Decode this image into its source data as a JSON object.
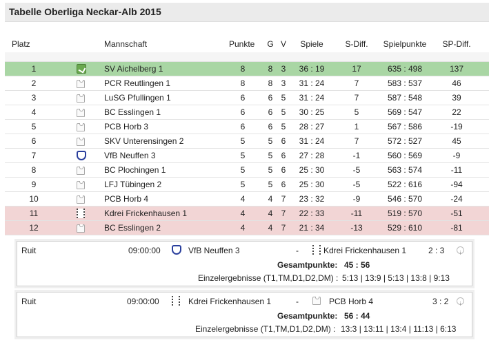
{
  "page": {
    "title": "Tabelle Oberliga Neckar-Alb 2015"
  },
  "table": {
    "headers": {
      "platz": "Platz",
      "mannschaft": "Mannschaft",
      "punkte": "Punkte",
      "g": "G",
      "v": "V",
      "spiele": "Spiele",
      "sdiff": "S-Diff.",
      "spielpunkte": "Spielpunkte",
      "spdiff": "SP-Diff."
    },
    "rows": [
      {
        "rank": "1",
        "logo": "club-shield-icon",
        "team": "SV Aichelberg 1",
        "punkte": "8",
        "g": "8",
        "v": "3",
        "spiele": "36 : 19",
        "sdiff": "17",
        "spielpunkte": "635 : 498",
        "spdiff": "137",
        "status": "promo"
      },
      {
        "rank": "2",
        "logo": "shirt-icon",
        "team": "PCR Reutlingen 1",
        "punkte": "8",
        "g": "8",
        "v": "3",
        "spiele": "31 : 24",
        "sdiff": "7",
        "spielpunkte": "583 : 537",
        "spdiff": "46",
        "status": ""
      },
      {
        "rank": "3",
        "logo": "shirt-icon",
        "team": "LuSG Pfullingen 1",
        "punkte": "6",
        "g": "6",
        "v": "5",
        "spiele": "31 : 24",
        "sdiff": "7",
        "spielpunkte": "587 : 548",
        "spdiff": "39",
        "status": ""
      },
      {
        "rank": "4",
        "logo": "shirt-icon",
        "team": "BC Esslingen 1",
        "punkte": "6",
        "g": "6",
        "v": "5",
        "spiele": "30 : 25",
        "sdiff": "5",
        "spielpunkte": "569 : 547",
        "spdiff": "22",
        "status": ""
      },
      {
        "rank": "5",
        "logo": "shirt-icon",
        "team": "PCB Horb 3",
        "punkte": "6",
        "g": "6",
        "v": "5",
        "spiele": "28 : 27",
        "sdiff": "1",
        "spielpunkte": "567 : 586",
        "spdiff": "-19",
        "status": ""
      },
      {
        "rank": "6",
        "logo": "shirt-icon",
        "team": "SKV Unterensingen 2",
        "punkte": "5",
        "g": "5",
        "v": "6",
        "spiele": "31 : 24",
        "sdiff": "7",
        "spielpunkte": "572 : 527",
        "spdiff": "45",
        "status": ""
      },
      {
        "rank": "7",
        "logo": "vfb-crest-icon",
        "team": "VfB Neuffen 3",
        "punkte": "5",
        "g": "5",
        "v": "6",
        "spiele": "27 : 28",
        "sdiff": "-1",
        "spielpunkte": "560 : 569",
        "spdiff": "-9",
        "status": ""
      },
      {
        "rank": "8",
        "logo": "shirt-icon",
        "team": "BC Plochingen 1",
        "punkte": "5",
        "g": "5",
        "v": "6",
        "spiele": "25 : 30",
        "sdiff": "-5",
        "spielpunkte": "563 : 574",
        "spdiff": "-11",
        "status": ""
      },
      {
        "rank": "9",
        "logo": "shirt-icon",
        "team": "LFJ Tübingen 2",
        "punkte": "5",
        "g": "5",
        "v": "6",
        "spiele": "25 : 30",
        "sdiff": "-5",
        "spielpunkte": "522 : 616",
        "spdiff": "-94",
        "status": ""
      },
      {
        "rank": "10",
        "logo": "shirt-icon",
        "team": "PCB Horb 4",
        "punkte": "4",
        "g": "4",
        "v": "7",
        "spiele": "23 : 32",
        "sdiff": "-9",
        "spielpunkte": "546 : 570",
        "spdiff": "-24",
        "status": ""
      },
      {
        "rank": "11",
        "logo": "kdrei-crest-icon",
        "team": "Kdrei Frickenhausen 1",
        "punkte": "4",
        "g": "4",
        "v": "7",
        "spiele": "22 : 33",
        "sdiff": "-11",
        "spielpunkte": "519 : 570",
        "spdiff": "-51",
        "status": "releg"
      },
      {
        "rank": "12",
        "logo": "shirt-icon",
        "team": "BC Esslingen 2",
        "punkte": "4",
        "g": "4",
        "v": "7",
        "spiele": "21 : 34",
        "sdiff": "-13",
        "spielpunkte": "529 : 610",
        "spdiff": "-81",
        "status": "releg"
      }
    ]
  },
  "matches": [
    {
      "location": "Ruit",
      "time": "09:00:00",
      "home_logo": "vfb-crest-icon",
      "home": "VfB Neuffen 3",
      "dash": "-",
      "away_logo": "kdrei-crest-icon",
      "away": "Kdrei Frickenhausen 1",
      "score": "2 : 3",
      "info": "i",
      "gesamt_label": "Gesamtpunkte:",
      "gesamt_value": "45 : 56",
      "einzel_label": "Einzelergebnisse (T1,TM,D1,D2,DM) :",
      "einzel_value": "5:13 | 13:9 | 5:13 | 13:8 | 9:13"
    },
    {
      "location": "Ruit",
      "time": "09:00:00",
      "home_logo": "kdrei-crest-icon",
      "home": "Kdrei Frickenhausen 1",
      "dash": "-",
      "away_logo": "shirt-icon",
      "away": "PCB Horb 4",
      "score": "3 : 2",
      "info": "i",
      "gesamt_label": "Gesamtpunkte:",
      "gesamt_value": "56 : 44",
      "einzel_label": "Einzelergebnisse (T1,TM,D1,D2,DM) :",
      "einzel_value": "13:3 | 13:11 | 13:4 | 11:13 | 6:13"
    }
  ],
  "colors": {
    "promo": "#a9d6a4",
    "releg": "#f2d5d5",
    "header_bg": "#ebebeb"
  }
}
